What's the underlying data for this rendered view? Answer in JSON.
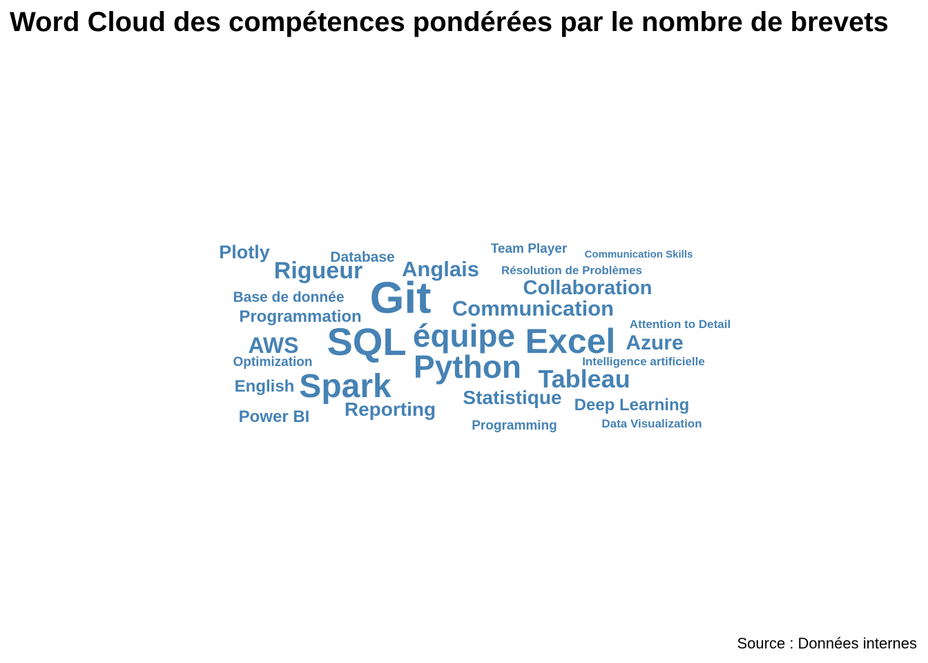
{
  "title": "Word Cloud des compétences pondérées par le nombre de brevets",
  "source": "Source : Données internes",
  "chart_data": {
    "type": "wordcloud",
    "color": "#4682b4",
    "words": [
      {
        "word": "Git",
        "weight": 10
      },
      {
        "word": "SQL",
        "weight": 9
      },
      {
        "word": "Excel",
        "weight": 8
      },
      {
        "word": "Python",
        "weight": 8
      },
      {
        "word": "Spark",
        "weight": 8
      },
      {
        "word": "équipe",
        "weight": 8
      },
      {
        "word": "Tableau",
        "weight": 6
      },
      {
        "word": "Rigueur",
        "weight": 6
      },
      {
        "word": "Anglais",
        "weight": 5
      },
      {
        "word": "Azure",
        "weight": 5
      },
      {
        "word": "AWS",
        "weight": 5
      },
      {
        "word": "Collaboration",
        "weight": 5
      },
      {
        "word": "Communication",
        "weight": 5
      },
      {
        "word": "Statistique",
        "weight": 5
      },
      {
        "word": "Reporting",
        "weight": 5
      },
      {
        "word": "Plotly",
        "weight": 5
      },
      {
        "word": "Programmation",
        "weight": 4
      },
      {
        "word": "Deep Learning",
        "weight": 4
      },
      {
        "word": "Power BI",
        "weight": 4
      },
      {
        "word": "English",
        "weight": 4
      },
      {
        "word": "Base de donnée",
        "weight": 3
      },
      {
        "word": "Database",
        "weight": 3
      },
      {
        "word": "Team Player",
        "weight": 3
      },
      {
        "word": "Programming",
        "weight": 3
      },
      {
        "word": "Optimization",
        "weight": 3
      },
      {
        "word": "Résolution de Problèmes",
        "weight": 2
      },
      {
        "word": "Intelligence artificielle",
        "weight": 2
      },
      {
        "word": "Attention to Detail",
        "weight": 2
      },
      {
        "word": "Data Visualization",
        "weight": 2
      },
      {
        "word": "Communication Skills",
        "weight": 1
      }
    ]
  }
}
